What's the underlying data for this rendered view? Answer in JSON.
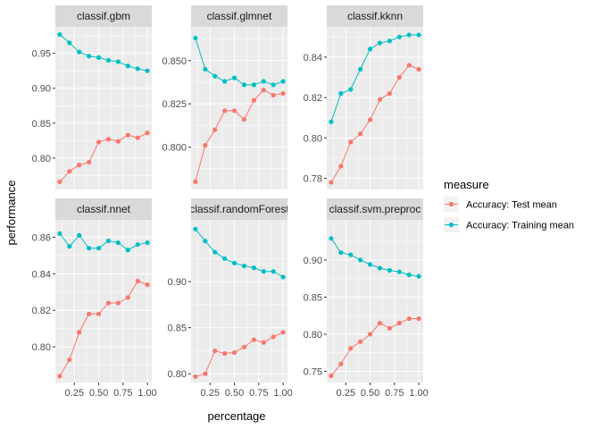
{
  "chart_data": {
    "type": "line",
    "xlabel": "percentage",
    "ylabel": "performance",
    "x": [
      0.1,
      0.2,
      0.3,
      0.4,
      0.5,
      0.6,
      0.7,
      0.8,
      0.9,
      1.0
    ],
    "xticks": [
      0.25,
      0.5,
      0.75,
      1.0
    ],
    "xtick_labels": [
      "0.25",
      "0.50",
      "0.75",
      "1.00"
    ],
    "xlim": [
      0.055,
      1.045
    ],
    "grid": true,
    "legend": {
      "title": "measure",
      "position": "right",
      "entries": [
        {
          "label": "Accuracy: Test mean",
          "color": "#F8766D"
        },
        {
          "label": "Accuracy: Training mean",
          "color": "#00BFC4"
        }
      ]
    },
    "panels": [
      {
        "strip": "classif.gbm",
        "ylim": [
          0.755,
          0.988
        ],
        "yticks": [
          0.8,
          0.85,
          0.9,
          0.95
        ],
        "ytick_labels": [
          "0.80",
          "0.85",
          "0.90",
          "0.95"
        ],
        "series": [
          {
            "name": "Accuracy: Test mean",
            "values": [
              0.766,
              0.781,
              0.79,
              0.794,
              0.823,
              0.827,
              0.824,
              0.833,
              0.829,
              0.836
            ]
          },
          {
            "name": "Accuracy: Training mean",
            "values": [
              0.977,
              0.965,
              0.952,
              0.946,
              0.944,
              0.94,
              0.938,
              0.932,
              0.928,
              0.925
            ]
          }
        ]
      },
      {
        "strip": "classif.glmnet",
        "ylim": [
          0.7755,
          0.8695
        ],
        "yticks": [
          0.8,
          0.825,
          0.85
        ],
        "ytick_labels": [
          "0.800",
          "0.825",
          "0.850"
        ],
        "series": [
          {
            "name": "Accuracy: Test mean",
            "values": [
              0.78,
              0.801,
              0.81,
              0.821,
              0.821,
              0.816,
              0.827,
              0.833,
              0.83,
              0.831
            ]
          },
          {
            "name": "Accuracy: Training mean",
            "values": [
              0.863,
              0.845,
              0.841,
              0.838,
              0.84,
              0.836,
              0.836,
              0.838,
              0.836,
              0.838
            ]
          }
        ]
      },
      {
        "strip": "classif.kknn",
        "ylim": [
          0.7745,
          0.855
        ],
        "yticks": [
          0.78,
          0.8,
          0.82,
          0.84
        ],
        "ytick_labels": [
          "0.78",
          "0.80",
          "0.82",
          "0.84"
        ],
        "series": [
          {
            "name": "Accuracy: Test mean",
            "values": [
              0.778,
              0.786,
              0.798,
              0.802,
              0.809,
              0.819,
              0.822,
              0.83,
              0.836,
              0.834
            ]
          },
          {
            "name": "Accuracy: Training mean",
            "values": [
              0.808,
              0.822,
              0.824,
              0.834,
              0.844,
              0.847,
              0.848,
              0.85,
              0.851,
              0.851
            ]
          }
        ]
      },
      {
        "strip": "classif.nnet",
        "ylim": [
          0.7805,
          0.8695
        ],
        "yticks": [
          0.8,
          0.82,
          0.84,
          0.86
        ],
        "ytick_labels": [
          "0.80",
          "0.82",
          "0.84",
          "0.86"
        ],
        "series": [
          {
            "name": "Accuracy: Test mean",
            "values": [
              0.784,
              0.793,
              0.808,
              0.818,
              0.818,
              0.824,
              0.824,
              0.827,
              0.836,
              0.834
            ]
          },
          {
            "name": "Accuracy: Training mean",
            "values": [
              0.862,
              0.855,
              0.861,
              0.854,
              0.854,
              0.858,
              0.857,
              0.853,
              0.856,
              0.857
            ]
          }
        ]
      },
      {
        "strip": "classif.randomForest",
        "ylim": [
          0.7905,
          0.967
        ],
        "yticks": [
          0.8,
          0.85,
          0.9
        ],
        "ytick_labels": [
          "0.80",
          "0.85",
          "0.90"
        ],
        "series": [
          {
            "name": "Accuracy: Test mean",
            "values": [
              0.797,
              0.8,
              0.825,
              0.822,
              0.823,
              0.829,
              0.837,
              0.834,
              0.84,
              0.845
            ]
          },
          {
            "name": "Accuracy: Training mean",
            "values": [
              0.957,
              0.944,
              0.932,
              0.925,
              0.92,
              0.917,
              0.915,
              0.911,
              0.911,
              0.905
            ]
          }
        ]
      },
      {
        "strip": "classif.svm.preproc",
        "ylim": [
          0.735,
          0.954
        ],
        "yticks": [
          0.75,
          0.8,
          0.85,
          0.9
        ],
        "ytick_labels": [
          "0.75",
          "0.80",
          "0.85",
          "0.90"
        ],
        "series": [
          {
            "name": "Accuracy: Test mean",
            "values": [
              0.744,
              0.76,
              0.781,
              0.79,
              0.8,
              0.815,
              0.808,
              0.815,
              0.821,
              0.821
            ]
          },
          {
            "name": "Accuracy: Training mean",
            "values": [
              0.929,
              0.91,
              0.907,
              0.9,
              0.894,
              0.889,
              0.886,
              0.884,
              0.88,
              0.878
            ]
          }
        ]
      }
    ]
  }
}
